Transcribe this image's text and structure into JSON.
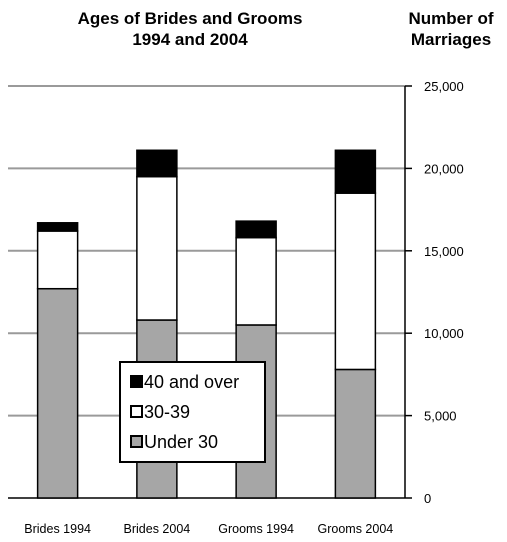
{
  "chart_data": {
    "type": "bar",
    "stacked": true,
    "title_line1": "Ages of Brides and Grooms",
    "title_line2": "1994 and 2004",
    "ylabel_line1": "Number of",
    "ylabel_line2": "Marriages",
    "categories": [
      "Brides 1994",
      "Brides 2004",
      "Grooms 1994",
      "Grooms 2004"
    ],
    "series": [
      {
        "name": "Under 30",
        "color": "#a6a6a6",
        "values": [
          12700,
          10800,
          10500,
          7800
        ]
      },
      {
        "name": "30-39",
        "color": "#ffffff",
        "values": [
          3500,
          8700,
          5300,
          10700
        ]
      },
      {
        "name": "40 and over",
        "color": "#000000",
        "values": [
          500,
          1600,
          1000,
          2600
        ]
      }
    ],
    "legend_order": [
      "40 and over",
      "30-39",
      "Under 30"
    ],
    "yticks": [
      "25,000",
      "20,000",
      "15,000",
      "10,000",
      "5,000",
      "0"
    ],
    "ytick_values": [
      25000,
      20000,
      15000,
      10000,
      5000,
      0
    ],
    "ylim": [
      0,
      25000
    ],
    "yaxis_side": "right",
    "grid": true,
    "legend_position": "center"
  }
}
